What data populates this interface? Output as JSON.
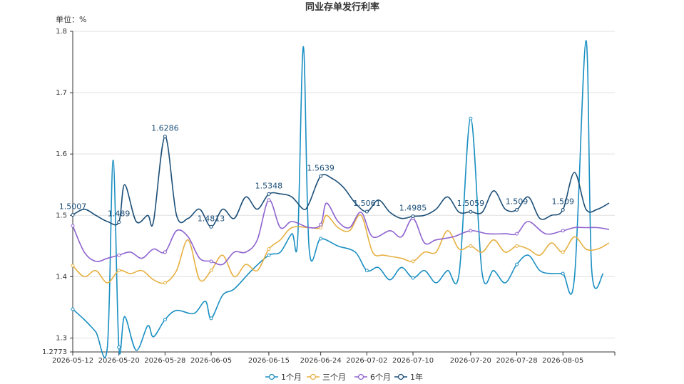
{
  "chart_data": {
    "type": "line",
    "title": "同业存单发行利率",
    "unit_label": "单位：%",
    "ylim": [
      1.2773,
      1.8
    ],
    "yticks": [
      1.2773,
      1.3,
      1.4,
      1.5,
      1.6,
      1.7,
      1.8
    ],
    "xlim": [
      "2026-05-12",
      "2026-08-14"
    ],
    "x_tick_labels": [
      "2026-05-12",
      "2026-05-20",
      "2026-05-28",
      "2026-06-05",
      "2026-06-15",
      "2026-06-24",
      "2026-07-02",
      "2026-07-10",
      "2026-07-20",
      "2026-07-28",
      "2026-08-05"
    ],
    "grid": true,
    "legend_position": "bottom",
    "series": [
      {
        "name": "1个月",
        "color": "#1a8fc2",
        "points": [
          [
            "2026-05-12",
            1.347
          ],
          [
            "2026-05-14",
            1.33
          ],
          [
            "2026-05-16",
            1.31
          ],
          [
            "2026-05-18",
            1.285
          ],
          [
            "2026-05-19",
            1.59
          ],
          [
            "2026-05-20",
            1.285
          ],
          [
            "2026-05-21",
            1.335
          ],
          [
            "2026-05-23",
            1.28
          ],
          [
            "2026-05-25",
            1.32
          ],
          [
            "2026-05-26",
            1.302
          ],
          [
            "2026-05-28",
            1.33
          ],
          [
            "2026-05-30",
            1.345
          ],
          [
            "2026-06-02",
            1.34
          ],
          [
            "2026-06-04",
            1.36
          ],
          [
            "2026-06-05",
            1.332
          ],
          [
            "2026-06-07",
            1.37
          ],
          [
            "2026-06-09",
            1.38
          ],
          [
            "2026-06-12",
            1.41
          ],
          [
            "2026-06-15",
            1.435
          ],
          [
            "2026-06-17",
            1.44
          ],
          [
            "2026-06-19",
            1.47
          ],
          [
            "2026-06-20",
            1.46
          ],
          [
            "2026-06-21",
            1.775
          ],
          [
            "2026-06-22",
            1.445
          ],
          [
            "2026-06-24",
            1.462
          ],
          [
            "2026-06-27",
            1.45
          ],
          [
            "2026-06-30",
            1.44
          ],
          [
            "2026-07-02",
            1.41
          ],
          [
            "2026-07-04",
            1.415
          ],
          [
            "2026-07-06",
            1.395
          ],
          [
            "2026-07-08",
            1.415
          ],
          [
            "2026-07-10",
            1.398
          ],
          [
            "2026-07-12",
            1.41
          ],
          [
            "2026-07-14",
            1.39
          ],
          [
            "2026-07-16",
            1.41
          ],
          [
            "2026-07-18",
            1.405
          ],
          [
            "2026-07-20",
            1.658
          ],
          [
            "2026-07-22",
            1.405
          ],
          [
            "2026-07-24",
            1.41
          ],
          [
            "2026-07-26",
            1.39
          ],
          [
            "2026-07-28",
            1.42
          ],
          [
            "2026-07-30",
            1.435
          ],
          [
            "2026-08-01",
            1.41
          ],
          [
            "2026-08-03",
            1.405
          ],
          [
            "2026-08-05",
            1.405
          ],
          [
            "2026-08-07",
            1.398
          ],
          [
            "2026-08-09",
            1.785
          ],
          [
            "2026-08-10",
            1.41
          ],
          [
            "2026-08-12",
            1.405
          ]
        ]
      },
      {
        "name": "三个月",
        "color": "#e6b042",
        "points": [
          [
            "2026-05-12",
            1.418
          ],
          [
            "2026-05-14",
            1.4
          ],
          [
            "2026-05-16",
            1.41
          ],
          [
            "2026-05-18",
            1.39
          ],
          [
            "2026-05-20",
            1.41
          ],
          [
            "2026-05-22",
            1.405
          ],
          [
            "2026-05-24",
            1.41
          ],
          [
            "2026-05-26",
            1.395
          ],
          [
            "2026-05-28",
            1.39
          ],
          [
            "2026-05-30",
            1.41
          ],
          [
            "2026-06-01",
            1.46
          ],
          [
            "2026-06-03",
            1.395
          ],
          [
            "2026-06-05",
            1.41
          ],
          [
            "2026-06-07",
            1.435
          ],
          [
            "2026-06-09",
            1.4
          ],
          [
            "2026-06-11",
            1.42
          ],
          [
            "2026-06-13",
            1.41
          ],
          [
            "2026-06-15",
            1.445
          ],
          [
            "2026-06-17",
            1.46
          ],
          [
            "2026-06-19",
            1.48
          ],
          [
            "2026-06-22",
            1.48
          ],
          [
            "2026-06-24",
            1.48
          ],
          [
            "2026-06-25",
            1.5
          ],
          [
            "2026-06-27",
            1.48
          ],
          [
            "2026-06-29",
            1.475
          ],
          [
            "2026-07-01",
            1.5
          ],
          [
            "2026-07-03",
            1.44
          ],
          [
            "2026-07-05",
            1.435
          ],
          [
            "2026-07-08",
            1.43
          ],
          [
            "2026-07-10",
            1.425
          ],
          [
            "2026-07-12",
            1.44
          ],
          [
            "2026-07-14",
            1.44
          ],
          [
            "2026-07-16",
            1.475
          ],
          [
            "2026-07-18",
            1.445
          ],
          [
            "2026-07-20",
            1.45
          ],
          [
            "2026-07-22",
            1.44
          ],
          [
            "2026-07-24",
            1.46
          ],
          [
            "2026-07-26",
            1.44
          ],
          [
            "2026-07-28",
            1.45
          ],
          [
            "2026-07-30",
            1.445
          ],
          [
            "2026-08-01",
            1.435
          ],
          [
            "2026-08-03",
            1.455
          ],
          [
            "2026-08-05",
            1.44
          ],
          [
            "2026-08-07",
            1.465
          ],
          [
            "2026-08-09",
            1.445
          ],
          [
            "2026-08-11",
            1.445
          ],
          [
            "2026-08-13",
            1.455
          ]
        ]
      },
      {
        "name": "6个月",
        "color": "#8e63cf",
        "points": [
          [
            "2026-05-12",
            1.483
          ],
          [
            "2026-05-14",
            1.44
          ],
          [
            "2026-05-16",
            1.425
          ],
          [
            "2026-05-18",
            1.43
          ],
          [
            "2026-05-20",
            1.435
          ],
          [
            "2026-05-22",
            1.44
          ],
          [
            "2026-05-24",
            1.43
          ],
          [
            "2026-05-26",
            1.445
          ],
          [
            "2026-05-28",
            1.44
          ],
          [
            "2026-05-30",
            1.475
          ],
          [
            "2026-06-01",
            1.465
          ],
          [
            "2026-06-03",
            1.43
          ],
          [
            "2026-06-05",
            1.425
          ],
          [
            "2026-06-07",
            1.42
          ],
          [
            "2026-06-09",
            1.44
          ],
          [
            "2026-06-11",
            1.44
          ],
          [
            "2026-06-13",
            1.46
          ],
          [
            "2026-06-15",
            1.525
          ],
          [
            "2026-06-17",
            1.48
          ],
          [
            "2026-06-19",
            1.49
          ],
          [
            "2026-06-22",
            1.48
          ],
          [
            "2026-06-24",
            1.485
          ],
          [
            "2026-06-25",
            1.52
          ],
          [
            "2026-06-27",
            1.49
          ],
          [
            "2026-06-29",
            1.48
          ],
          [
            "2026-07-01",
            1.505
          ],
          [
            "2026-07-03",
            1.465
          ],
          [
            "2026-07-06",
            1.475
          ],
          [
            "2026-07-08",
            1.465
          ],
          [
            "2026-07-10",
            1.495
          ],
          [
            "2026-07-12",
            1.455
          ],
          [
            "2026-07-14",
            1.46
          ],
          [
            "2026-07-17",
            1.465
          ],
          [
            "2026-07-20",
            1.475
          ],
          [
            "2026-07-23",
            1.47
          ],
          [
            "2026-07-26",
            1.47
          ],
          [
            "2026-07-28",
            1.47
          ],
          [
            "2026-07-30",
            1.49
          ],
          [
            "2026-08-02",
            1.47
          ],
          [
            "2026-08-05",
            1.475
          ],
          [
            "2026-08-07",
            1.48
          ],
          [
            "2026-08-09",
            1.48
          ],
          [
            "2026-08-11",
            1.48
          ],
          [
            "2026-08-13",
            1.477
          ]
        ]
      },
      {
        "name": "1年",
        "color": "#1c4f78",
        "points": [
          [
            "2026-05-12",
            1.5007
          ],
          [
            "2026-05-14",
            1.51
          ],
          [
            "2026-05-16",
            1.5
          ],
          [
            "2026-05-18",
            1.49
          ],
          [
            "2026-05-20",
            1.489
          ],
          [
            "2026-05-21",
            1.55
          ],
          [
            "2026-05-23",
            1.49
          ],
          [
            "2026-05-25",
            1.5
          ],
          [
            "2026-05-26",
            1.49
          ],
          [
            "2026-05-28",
            1.6286
          ],
          [
            "2026-05-30",
            1.5
          ],
          [
            "2026-06-01",
            1.495
          ],
          [
            "2026-06-03",
            1.51
          ],
          [
            "2026-06-05",
            1.4813
          ],
          [
            "2026-06-07",
            1.51
          ],
          [
            "2026-06-09",
            1.495
          ],
          [
            "2026-06-11",
            1.53
          ],
          [
            "2026-06-13",
            1.51
          ],
          [
            "2026-06-15",
            1.5348
          ],
          [
            "2026-06-17",
            1.535
          ],
          [
            "2026-06-19",
            1.53
          ],
          [
            "2026-06-21",
            1.51
          ],
          [
            "2026-06-22",
            1.52
          ],
          [
            "2026-06-24",
            1.5639
          ],
          [
            "2026-06-26",
            1.56
          ],
          [
            "2026-06-28",
            1.545
          ],
          [
            "2026-06-30",
            1.52
          ],
          [
            "2026-07-02",
            1.5061
          ],
          [
            "2026-07-04",
            1.525
          ],
          [
            "2026-07-06",
            1.505
          ],
          [
            "2026-07-08",
            1.495
          ],
          [
            "2026-07-10",
            1.4985
          ],
          [
            "2026-07-12",
            1.5
          ],
          [
            "2026-07-14",
            1.51
          ],
          [
            "2026-07-16",
            1.53
          ],
          [
            "2026-07-18",
            1.505
          ],
          [
            "2026-07-20",
            1.5059
          ],
          [
            "2026-07-22",
            1.505
          ],
          [
            "2026-07-24",
            1.54
          ],
          [
            "2026-07-26",
            1.51
          ],
          [
            "2026-07-28",
            1.509
          ],
          [
            "2026-07-30",
            1.53
          ],
          [
            "2026-08-01",
            1.495
          ],
          [
            "2026-08-03",
            1.5
          ],
          [
            "2026-08-05",
            1.509
          ],
          [
            "2026-08-07",
            1.57
          ],
          [
            "2026-08-09",
            1.51
          ],
          [
            "2026-08-11",
            1.51
          ],
          [
            "2026-08-13",
            1.52
          ]
        ]
      }
    ],
    "data_labels": [
      {
        "series": "1年",
        "x": "2026-05-12",
        "y": 1.5007,
        "text": "1.5007"
      },
      {
        "series": "1年",
        "x": "2026-05-20",
        "y": 1.489,
        "text": "1.489"
      },
      {
        "series": "1年",
        "x": "2026-05-28",
        "y": 1.6286,
        "text": "1.6286"
      },
      {
        "series": "1年",
        "x": "2026-06-05",
        "y": 1.4813,
        "text": "1.4813"
      },
      {
        "series": "1年",
        "x": "2026-06-15",
        "y": 1.5348,
        "text": "1.5348"
      },
      {
        "series": "1年",
        "x": "2026-06-24",
        "y": 1.5639,
        "text": "1.5639"
      },
      {
        "series": "1年",
        "x": "2026-07-02",
        "y": 1.5061,
        "text": "1.5061"
      },
      {
        "series": "1年",
        "x": "2026-07-10",
        "y": 1.4985,
        "text": "1.4985"
      },
      {
        "series": "1年",
        "x": "2026-07-20",
        "y": 1.5059,
        "text": "1.5059"
      },
      {
        "series": "1年",
        "x": "2026-07-28",
        "y": 1.509,
        "text": "1.509"
      },
      {
        "series": "1年",
        "x": "2026-08-05",
        "y": 1.509,
        "text": "1.509"
      }
    ]
  }
}
